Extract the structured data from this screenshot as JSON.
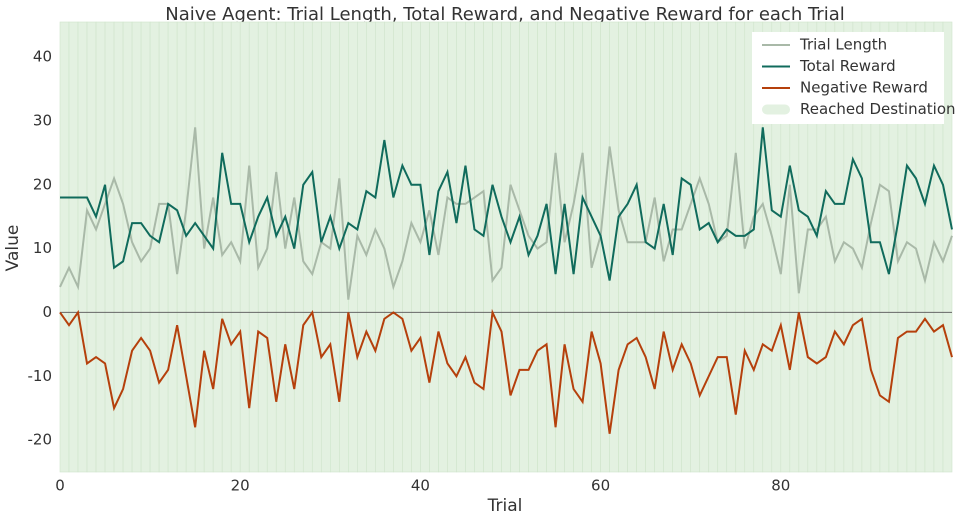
{
  "chart_data": {
    "type": "line",
    "title": "Naive Agent: Trial Length, Total Reward, and Negative Reward for each Trial",
    "x_label": "Trial",
    "y_label": "Value",
    "x": [
      0,
      1,
      2,
      3,
      4,
      5,
      6,
      7,
      8,
      9,
      10,
      11,
      12,
      13,
      14,
      15,
      16,
      17,
      18,
      19,
      20,
      21,
      22,
      23,
      24,
      25,
      26,
      27,
      28,
      29,
      30,
      31,
      32,
      33,
      34,
      35,
      36,
      37,
      38,
      39,
      40,
      41,
      42,
      43,
      44,
      45,
      46,
      47,
      48,
      49,
      50,
      51,
      52,
      53,
      54,
      55,
      56,
      57,
      58,
      59,
      60,
      61,
      62,
      63,
      64,
      65,
      66,
      67,
      68,
      69,
      70,
      71,
      72,
      73,
      74,
      75,
      76,
      77,
      78,
      79,
      80,
      81,
      82,
      83,
      84,
      85,
      86,
      87,
      88,
      89,
      90,
      91,
      92,
      93,
      94,
      95,
      96,
      97,
      98,
      99
    ],
    "series": [
      {
        "name": "Trial Length",
        "color": "#a9b9a8",
        "values": [
          4,
          7,
          4,
          16,
          13,
          17,
          21,
          17,
          11,
          8,
          10,
          17,
          17,
          6,
          16,
          29,
          10,
          18,
          9,
          11,
          8,
          23,
          7,
          10,
          22,
          10,
          18,
          8,
          6,
          11,
          10,
          21,
          2,
          12,
          9,
          13,
          10,
          4,
          8,
          14,
          11,
          16,
          9,
          18,
          17,
          17,
          18,
          19,
          5,
          7,
          20,
          16,
          12,
          10,
          11,
          25,
          11,
          17,
          25,
          7,
          12,
          26,
          16,
          11,
          11,
          11,
          18,
          8,
          13,
          13,
          17,
          21,
          17,
          11,
          12,
          25,
          10,
          15,
          17,
          12,
          6,
          20,
          3,
          13,
          13,
          15,
          8,
          11,
          10,
          7,
          14,
          20,
          19,
          8,
          11,
          10,
          5,
          11,
          8,
          12
        ]
      },
      {
        "name": "Total Reward",
        "color": "#106b5c",
        "values": [
          18,
          18,
          18,
          18,
          15,
          20,
          7,
          8,
          14,
          14,
          12,
          11,
          17,
          16,
          12,
          14,
          12,
          10,
          25,
          17,
          17,
          11,
          15,
          18,
          12,
          15,
          10,
          20,
          22,
          11,
          15,
          10,
          14,
          13,
          19,
          18,
          27,
          18,
          23,
          20,
          20,
          9,
          19,
          22,
          14,
          23,
          13,
          12,
          20,
          15,
          11,
          15,
          9,
          12,
          17,
          6,
          17,
          6,
          18,
          15,
          12,
          5,
          15,
          17,
          20,
          11,
          10,
          17,
          9,
          21,
          20,
          13,
          14,
          11,
          13,
          12,
          12,
          13,
          29,
          16,
          15,
          23,
          16,
          15,
          12,
          19,
          17,
          17,
          24,
          21,
          11,
          11,
          6,
          14,
          23,
          21,
          17,
          23,
          20,
          13
        ]
      },
      {
        "name": "Negative Reward",
        "color": "#b5400c",
        "values": [
          0,
          -2,
          0,
          -8,
          -7,
          -8,
          -15,
          -12,
          -6,
          -4,
          -6,
          -11,
          -9,
          -2,
          -10,
          -18,
          -6,
          -12,
          -1,
          -5,
          -3,
          -15,
          -3,
          -4,
          -14,
          -5,
          -12,
          -2,
          0,
          -7,
          -5,
          -14,
          0,
          -7,
          -3,
          -6,
          -1,
          0,
          -1,
          -6,
          -4,
          -11,
          -3,
          -8,
          -10,
          -7,
          -11,
          -12,
          0,
          -3,
          -13,
          -9,
          -9,
          -6,
          -5,
          -18,
          -5,
          -12,
          -14,
          -3,
          -8,
          -19,
          -9,
          -5,
          -4,
          -7,
          -12,
          -3,
          -9,
          -5,
          -8,
          -13,
          -10,
          -7,
          -7,
          -16,
          -6,
          -9,
          -5,
          -6,
          -2,
          -9,
          0,
          -7,
          -8,
          -7,
          -3,
          -5,
          -2,
          -1,
          -9,
          -13,
          -14,
          -4,
          -3,
          -3,
          -1,
          -3,
          -2,
          -7
        ]
      }
    ],
    "shade_name": "Reached Destination",
    "shade_color": "#e3f1e1",
    "shade_edge": "#cfe4cb",
    "xlim": [
      0,
      99
    ],
    "xticks": [
      0,
      20,
      40,
      60,
      80
    ],
    "ylim": [
      -25,
      45.5
    ],
    "yticks": [
      -20,
      -10,
      0,
      10,
      20,
      30,
      40
    ],
    "legend": "upper right"
  }
}
